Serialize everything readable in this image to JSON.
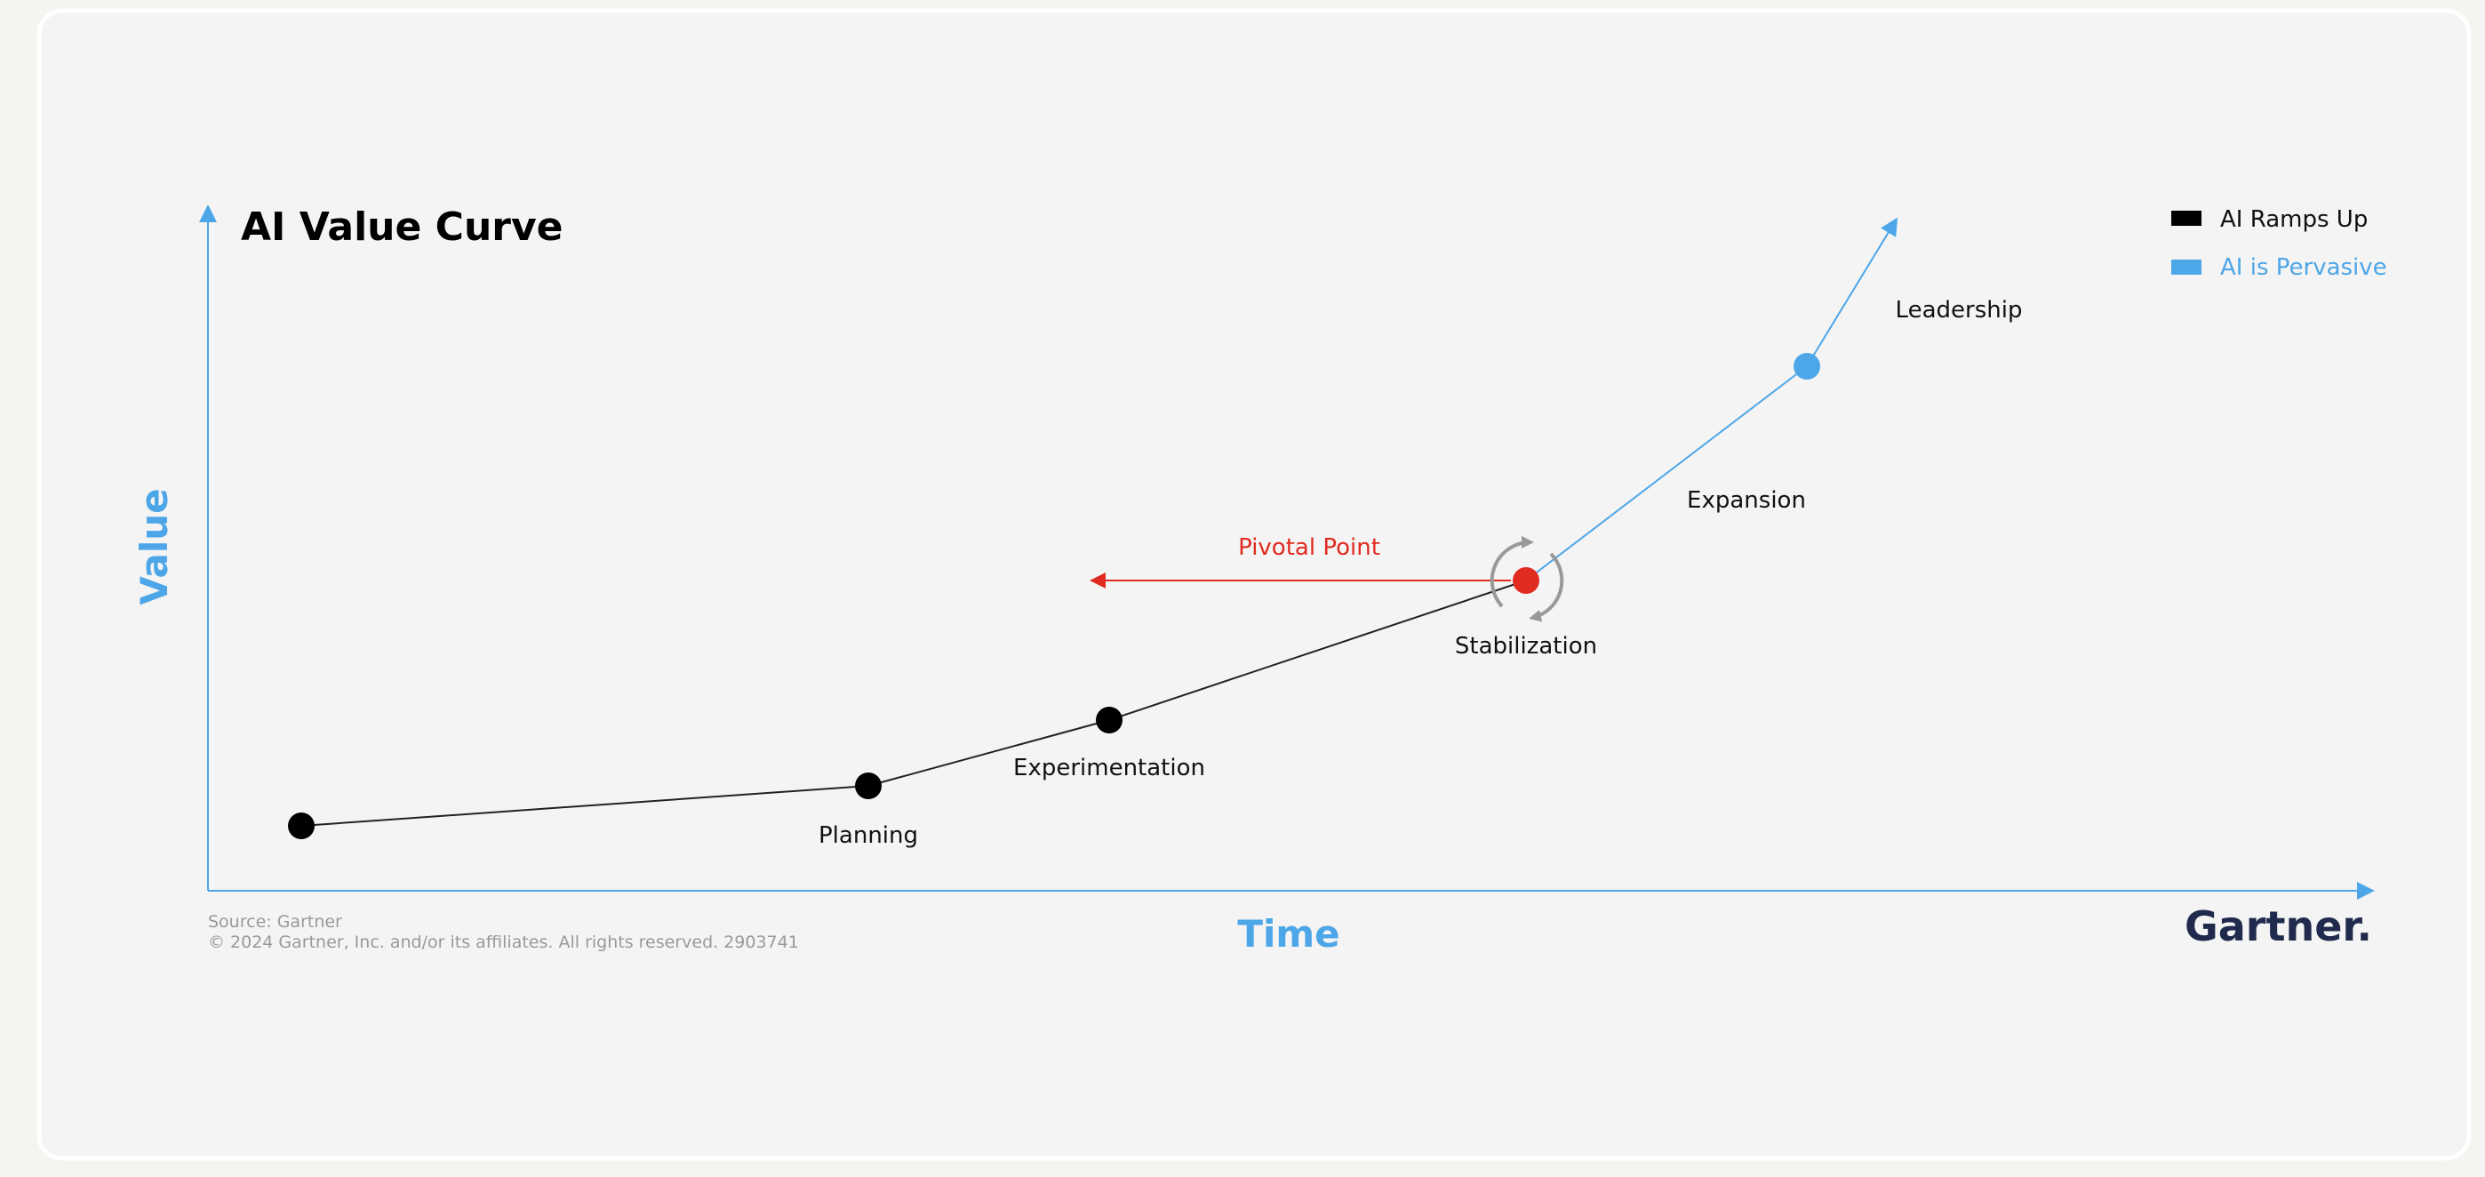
{
  "header": {
    "title": "AI Value Curve"
  },
  "axes": {
    "y_label": "Value",
    "x_label": "Time"
  },
  "legend": [
    {
      "label": "AI Ramps Up"
    },
    {
      "label": "AI is Pervasive"
    }
  ],
  "stages": [
    {
      "label": "Planning"
    },
    {
      "label": "Experimentation"
    },
    {
      "label": "Stabilization"
    },
    {
      "label": "Expansion"
    },
    {
      "label": "Leadership"
    }
  ],
  "pivot": {
    "label": "Pivotal Point"
  },
  "footer": {
    "source": "Source: Gartner",
    "copyright": "© 2024 Gartner, Inc. and/or its affiliates. All rights reserved. 2903741",
    "logo": "Gartner."
  }
}
